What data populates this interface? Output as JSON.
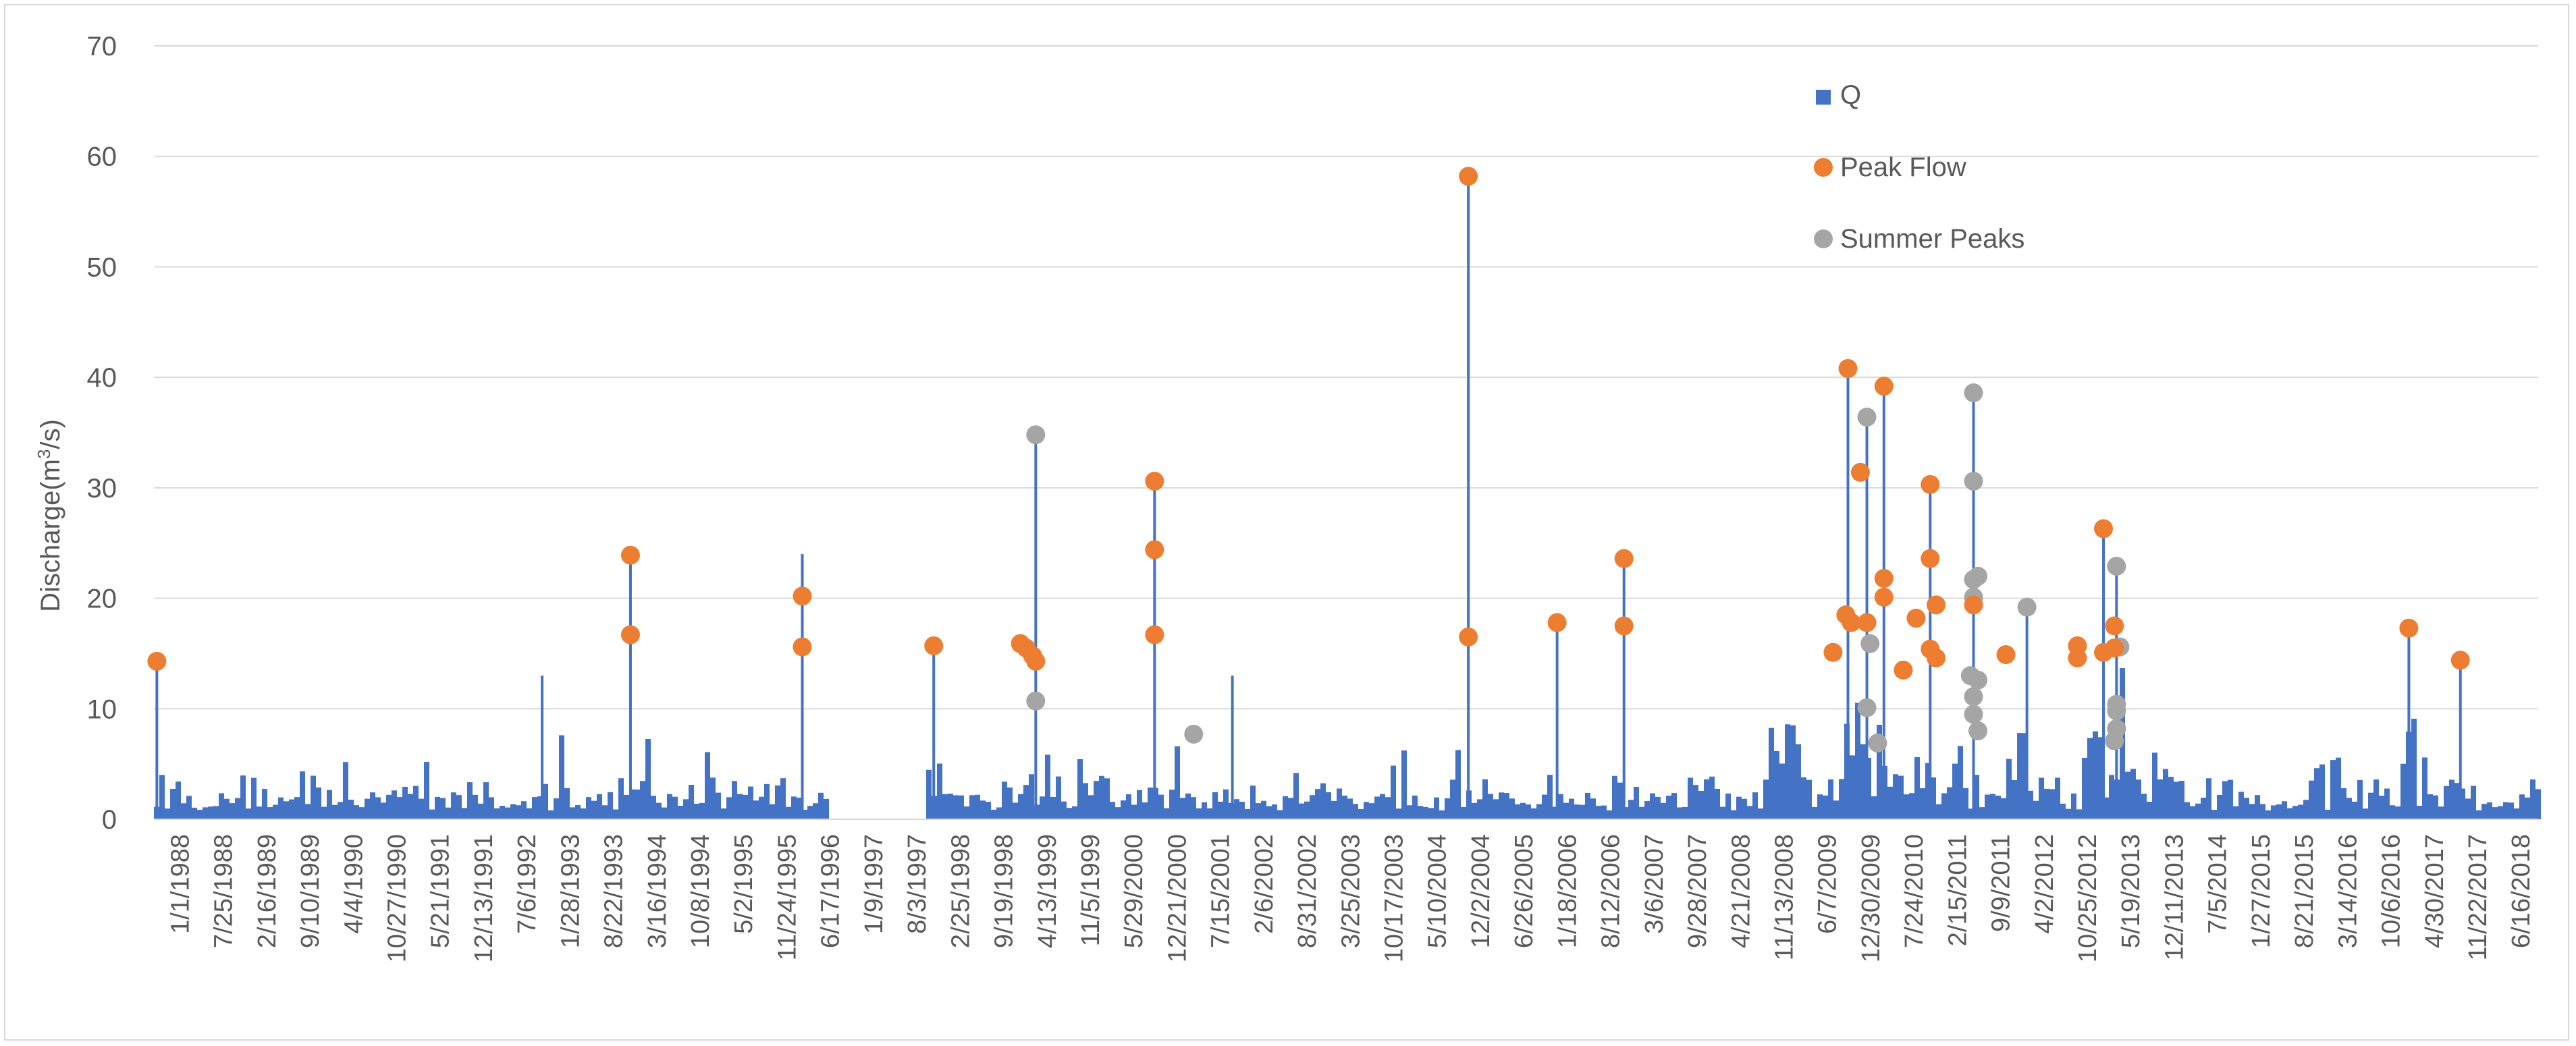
{
  "chart_data": {
    "type": "bar",
    "title": "",
    "ylabel": "Discharge(m",
    "ylabel_sup": "3",
    "ylabel_tail": "/s)",
    "xlabel": "",
    "ylim": [
      0,
      70
    ],
    "yticks": [
      "0",
      "10",
      "20",
      "30",
      "40",
      "50",
      "60",
      "70"
    ],
    "grid": true,
    "legend_position": "top-right",
    "x_tick_labels": [
      "1/1/1988",
      "7/25/1988",
      "2/16/1989",
      "9/10/1989",
      "4/4/1990",
      "10/27/1990",
      "5/21/1991",
      "12/13/1991",
      "7/6/1992",
      "1/28/1993",
      "8/22/1993",
      "3/16/1994",
      "10/8/1994",
      "5/2/1995",
      "11/24/1995",
      "6/17/1996",
      "1/9/1997",
      "8/3/1997",
      "2/25/1998",
      "9/19/1998",
      "4/13/1999",
      "11/5/1999",
      "5/29/2000",
      "12/21/2000",
      "7/15/2001",
      "2/6/2002",
      "8/31/2002",
      "3/25/2003",
      "10/17/2003",
      "5/10/2004",
      "12/2/2004",
      "6/26/2005",
      "1/18/2006",
      "8/12/2006",
      "3/6/2007",
      "9/28/2007",
      "4/21/2008",
      "11/13/2008",
      "6/7/2009",
      "12/30/2009",
      "7/24/2010",
      "2/15/2011",
      "9/9/2011",
      "4/2/2012",
      "10/25/2012",
      "5/19/2013",
      "12/11/2013",
      "7/5/2014",
      "1/27/2015",
      "8/21/2015",
      "3/14/2016",
      "10/6/2016",
      "4/30/2017",
      "11/22/2017",
      "6/16/2018"
    ],
    "colors": {
      "Q": "#4472c4",
      "Peak Flow": "#ed7d31",
      "Summer Peaks": "#a5a5a5",
      "grid": "#d9d9d9",
      "text": "#595959"
    },
    "series": [
      {
        "name": "Q",
        "type": "bar",
        "spikes": [
          {
            "x": "1988-01-15",
            "y": 14.5
          },
          {
            "x": "1993-01-20",
            "y": 13
          },
          {
            "x": "1994-03-16",
            "y": 24
          },
          {
            "x": "1996-06-10",
            "y": 24
          },
          {
            "x": "1998-02-25",
            "y": 15.7
          },
          {
            "x": "1999-06-25",
            "y": 35
          },
          {
            "x": "2001-01-10",
            "y": 30.6
          },
          {
            "x": "2002-01-15",
            "y": 13
          },
          {
            "x": "2005-02-10",
            "y": 58
          },
          {
            "x": "2006-04-08",
            "y": 17.8
          },
          {
            "x": "2007-02-20",
            "y": 23.6
          },
          {
            "x": "2010-01-20",
            "y": 40.8
          },
          {
            "x": "2010-04-20",
            "y": 36.5
          },
          {
            "x": "2010-07-10",
            "y": 39.2
          },
          {
            "x": "2011-02-15",
            "y": 30.3
          },
          {
            "x": "2011-09-09",
            "y": 38.6
          },
          {
            "x": "2012-05-20",
            "y": 19.2
          },
          {
            "x": "2013-05-19",
            "y": 26.3
          },
          {
            "x": "2013-07-20",
            "y": 22.9
          },
          {
            "x": "2017-05-10",
            "y": 17.3
          },
          {
            "x": "2018-01-10",
            "y": 14.4
          }
        ],
        "gaps": [
          {
            "from": "1996-10-01",
            "to": "1998-01-01"
          }
        ]
      },
      {
        "name": "Peak Flow",
        "type": "scatter",
        "points": [
          {
            "x": "1988-01-15",
            "y": 14.3
          },
          {
            "x": "1994-03-16",
            "y": 16.7
          },
          {
            "x": "1994-03-16",
            "y": 23.9
          },
          {
            "x": "1996-06-10",
            "y": 15.6
          },
          {
            "x": "1996-06-10",
            "y": 20.2
          },
          {
            "x": "1998-02-25",
            "y": 15.7
          },
          {
            "x": "1999-04-13",
            "y": 15.9
          },
          {
            "x": "1999-05-10",
            "y": 15.5
          },
          {
            "x": "1999-06-10",
            "y": 14.8
          },
          {
            "x": "1999-06-25",
            "y": 14.3
          },
          {
            "x": "2001-01-10",
            "y": 16.7
          },
          {
            "x": "2001-01-10",
            "y": 24.4
          },
          {
            "x": "2001-01-10",
            "y": 30.6
          },
          {
            "x": "2005-02-10",
            "y": 16.5
          },
          {
            "x": "2005-02-10",
            "y": 58.2
          },
          {
            "x": "2006-04-08",
            "y": 17.8
          },
          {
            "x": "2007-02-20",
            "y": 17.5
          },
          {
            "x": "2007-02-20",
            "y": 23.6
          },
          {
            "x": "2009-11-10",
            "y": 15.1
          },
          {
            "x": "2010-01-10",
            "y": 18.5
          },
          {
            "x": "2010-02-05",
            "y": 17.8
          },
          {
            "x": "2010-01-20",
            "y": 40.8
          },
          {
            "x": "2010-03-20",
            "y": 31.4
          },
          {
            "x": "2010-04-20",
            "y": 17.8
          },
          {
            "x": "2010-07-10",
            "y": 21.8
          },
          {
            "x": "2010-07-10",
            "y": 20.1
          },
          {
            "x": "2010-07-10",
            "y": 39.2
          },
          {
            "x": "2010-10-10",
            "y": 13.5
          },
          {
            "x": "2010-12-10",
            "y": 18.2
          },
          {
            "x": "2011-02-15",
            "y": 30.3
          },
          {
            "x": "2011-02-15",
            "y": 23.6
          },
          {
            "x": "2011-03-15",
            "y": 19.4
          },
          {
            "x": "2011-02-15",
            "y": 15.4
          },
          {
            "x": "2011-03-15",
            "y": 14.6
          },
          {
            "x": "2011-09-09",
            "y": 19.4
          },
          {
            "x": "2012-02-10",
            "y": 14.9
          },
          {
            "x": "2013-01-15",
            "y": 15.7
          },
          {
            "x": "2013-01-15",
            "y": 14.6
          },
          {
            "x": "2013-05-19",
            "y": 26.3
          },
          {
            "x": "2013-05-19",
            "y": 15.1
          },
          {
            "x": "2013-07-10",
            "y": 17.5
          },
          {
            "x": "2013-07-10",
            "y": 15.5
          },
          {
            "x": "2017-05-10",
            "y": 17.3
          },
          {
            "x": "2018-01-10",
            "y": 14.4
          }
        ]
      },
      {
        "name": "Summer Peaks",
        "type": "scatter",
        "points": [
          {
            "x": "1999-06-25",
            "y": 34.8
          },
          {
            "x": "1999-06-25",
            "y": 10.7
          },
          {
            "x": "2001-07-15",
            "y": 7.7
          },
          {
            "x": "2010-04-20",
            "y": 36.4
          },
          {
            "x": "2010-04-20",
            "y": 10.1
          },
          {
            "x": "2010-05-05",
            "y": 15.9
          },
          {
            "x": "2010-06-10",
            "y": 6.9
          },
          {
            "x": "2011-09-09",
            "y": 38.6
          },
          {
            "x": "2011-09-09",
            "y": 30.6
          },
          {
            "x": "2011-09-09",
            "y": 21.7
          },
          {
            "x": "2011-09-09",
            "y": 20.1
          },
          {
            "x": "2011-09-30",
            "y": 22
          },
          {
            "x": "2011-08-25",
            "y": 13
          },
          {
            "x": "2011-09-30",
            "y": 12.6
          },
          {
            "x": "2011-09-09",
            "y": 11.1
          },
          {
            "x": "2011-09-09",
            "y": 9.5
          },
          {
            "x": "2011-09-30",
            "y": 8
          },
          {
            "x": "2012-05-20",
            "y": 19.2
          },
          {
            "x": "2013-07-20",
            "y": 22.9
          },
          {
            "x": "2013-08-05",
            "y": 15.6
          },
          {
            "x": "2013-07-20",
            "y": 10.4
          },
          {
            "x": "2013-07-20",
            "y": 9.8
          },
          {
            "x": "2013-07-20",
            "y": 8.2
          },
          {
            "x": "2013-07-10",
            "y": 7.1
          }
        ]
      }
    ]
  }
}
